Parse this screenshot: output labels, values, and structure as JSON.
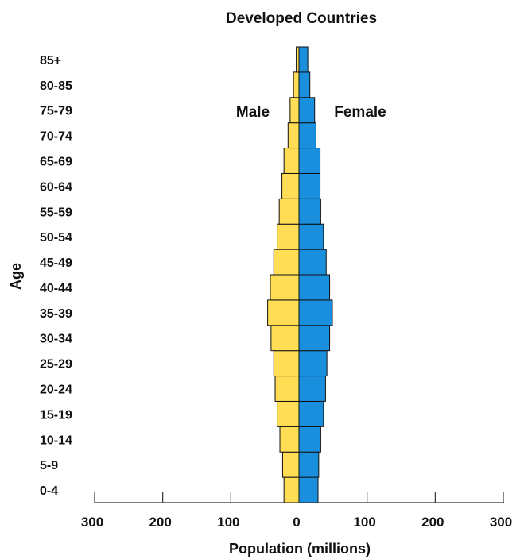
{
  "chart_data": {
    "type": "bar",
    "orientation": "horizontal",
    "title": "Developed Countries",
    "xlabel": "Population (millions)",
    "ylabel": "Age",
    "categories": [
      "0-4",
      "5-9",
      "10-14",
      "15-19",
      "20-24",
      "25-29",
      "30-34",
      "35-39",
      "40-44",
      "45-49",
      "50-54",
      "55-59",
      "60-64",
      "65-69",
      "70-74",
      "75-79",
      "80-85",
      "85+"
    ],
    "series": [
      {
        "name": "Male",
        "color": "#FFDD55",
        "values": [
          22,
          24,
          28,
          32,
          35,
          37,
          41,
          46,
          42,
          37,
          32,
          29,
          25,
          22,
          16,
          13,
          8,
          4
        ]
      },
      {
        "name": "Female",
        "color": "#1A8FDE",
        "values": [
          28,
          29,
          32,
          36,
          39,
          41,
          45,
          49,
          45,
          40,
          36,
          32,
          31,
          31,
          25,
          23,
          16,
          13
        ]
      }
    ],
    "xticks": [
      "300",
      "200",
      "100",
      "0",
      "100",
      "200",
      "300"
    ],
    "xlim": [
      -300,
      300
    ],
    "legend_labels": {
      "male": "Male",
      "female": "Female"
    },
    "grid": false
  }
}
